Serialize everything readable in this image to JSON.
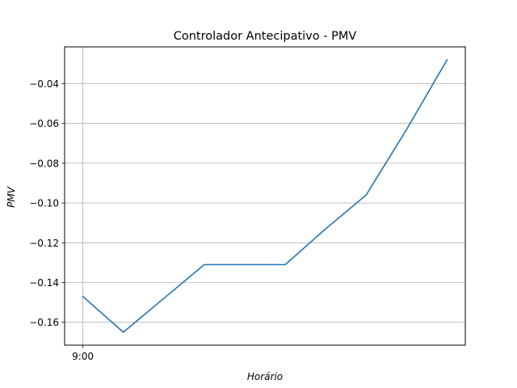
{
  "chart_data": {
    "type": "line",
    "title": "Controlador Antecipativo - PMV",
    "xlabel": "Horário",
    "ylabel": "PMV",
    "x_tick_labels": [
      "9:00"
    ],
    "x": [
      0,
      1,
      2,
      3,
      4,
      5,
      6,
      7,
      8,
      9
    ],
    "series": [
      {
        "values": [
          -0.147,
          -0.165,
          -0.148,
          -0.131,
          -0.131,
          -0.131,
          -0.113,
          -0.096,
          -0.063,
          -0.028
        ]
      }
    ],
    "xlim": [
      -0.45,
      9.45
    ],
    "ylim": [
      -0.1715,
      -0.0215
    ],
    "y_ticks": [
      -0.16,
      -0.14,
      -0.12,
      -0.1,
      -0.08,
      -0.06,
      -0.04
    ],
    "y_tick_labels": [
      "−0.16",
      "−0.14",
      "−0.12",
      "−0.10",
      "−0.08",
      "−0.06",
      "−0.04"
    ],
    "grid": true,
    "line_color": "#1f77b4",
    "grid_color": "#b0b0b0"
  }
}
